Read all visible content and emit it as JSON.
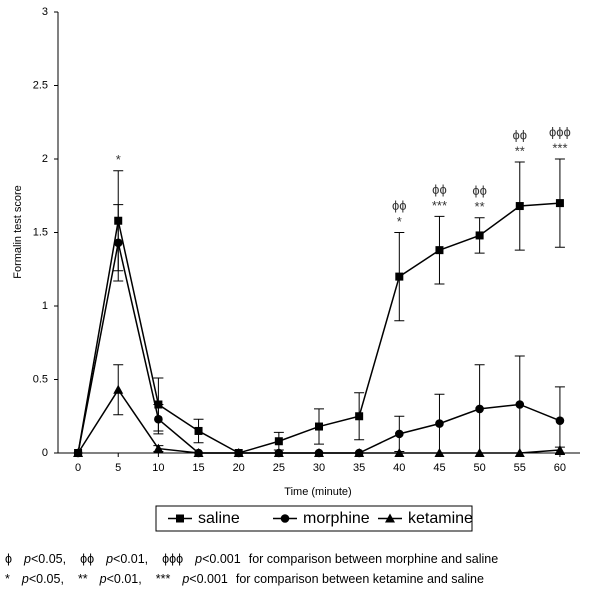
{
  "chart_data": {
    "type": "line",
    "xlabel": "Time (minute)",
    "ylabel": "Formalin test score",
    "x": [
      0,
      5,
      10,
      15,
      20,
      25,
      30,
      35,
      40,
      45,
      50,
      55,
      60
    ],
    "xlim": [
      -2.5,
      62.5
    ],
    "xticks": [
      0,
      5,
      10,
      15,
      20,
      25,
      30,
      35,
      40,
      45,
      50,
      55,
      60
    ],
    "ylim": [
      0,
      3
    ],
    "yticks": [
      0,
      0.5,
      1,
      1.5,
      2,
      2.5,
      3
    ],
    "series": [
      {
        "name": "saline",
        "marker": "square",
        "color": "#000000",
        "values": [
          0,
          1.58,
          0.33,
          0.15,
          0,
          0.08,
          0.18,
          0.25,
          1.2,
          1.38,
          1.48,
          1.68,
          1.7
        ],
        "errors": [
          0,
          0.34,
          0.18,
          0.08,
          0,
          0.06,
          0.12,
          0.16,
          0.3,
          0.23,
          0.12,
          0.3,
          0.3
        ]
      },
      {
        "name": "morphine",
        "marker": "circle",
        "color": "#000000",
        "values": [
          0,
          1.43,
          0.23,
          0,
          0,
          0,
          0,
          0,
          0.13,
          0.2,
          0.3,
          0.33,
          0.22
        ],
        "errors": [
          0,
          0.26,
          0.1,
          0,
          0,
          0,
          0,
          0,
          0.12,
          0.2,
          0.3,
          0.33,
          0.23
        ]
      },
      {
        "name": "ketamine",
        "marker": "triangle",
        "color": "#000000",
        "values": [
          0,
          0.43,
          0.03,
          0,
          0,
          0,
          0,
          0,
          0,
          0,
          0,
          0,
          0.02
        ],
        "errors": [
          0,
          0.17,
          0.02,
          0,
          0,
          0,
          0,
          0,
          0,
          0,
          0,
          0,
          0.02
        ]
      }
    ],
    "annotations": [
      {
        "x": 5,
        "lines": [
          "*"
        ]
      },
      {
        "x": 40,
        "lines": [
          "ϕϕ",
          "*"
        ]
      },
      {
        "x": 45,
        "lines": [
          "ϕϕ",
          "***"
        ]
      },
      {
        "x": 50,
        "lines": [
          "ϕϕ",
          "**"
        ]
      },
      {
        "x": 55,
        "lines": [
          "ϕϕ",
          "**"
        ]
      },
      {
        "x": 60,
        "lines": [
          "ϕϕϕ",
          "***"
        ]
      }
    ],
    "footnotes": [
      {
        "items": [
          {
            "symbol": "ϕ",
            "p": "p",
            "threshold": "<0.05,"
          },
          {
            "symbol": "ϕϕ",
            "p": "p",
            "threshold": "<0.01,"
          },
          {
            "symbol": "ϕϕϕ",
            "p": "p",
            "threshold": "<0.001"
          }
        ],
        "tail": "for comparison between morphine and saline"
      },
      {
        "items": [
          {
            "symbol": "*",
            "p": "p",
            "threshold": "<0.05,"
          },
          {
            "symbol": "**",
            "p": "p",
            "threshold": "<0.01,"
          },
          {
            "symbol": "***",
            "p": "p",
            "threshold": "<0.001"
          }
        ],
        "tail": "for comparison between ketamine and saline"
      }
    ]
  }
}
